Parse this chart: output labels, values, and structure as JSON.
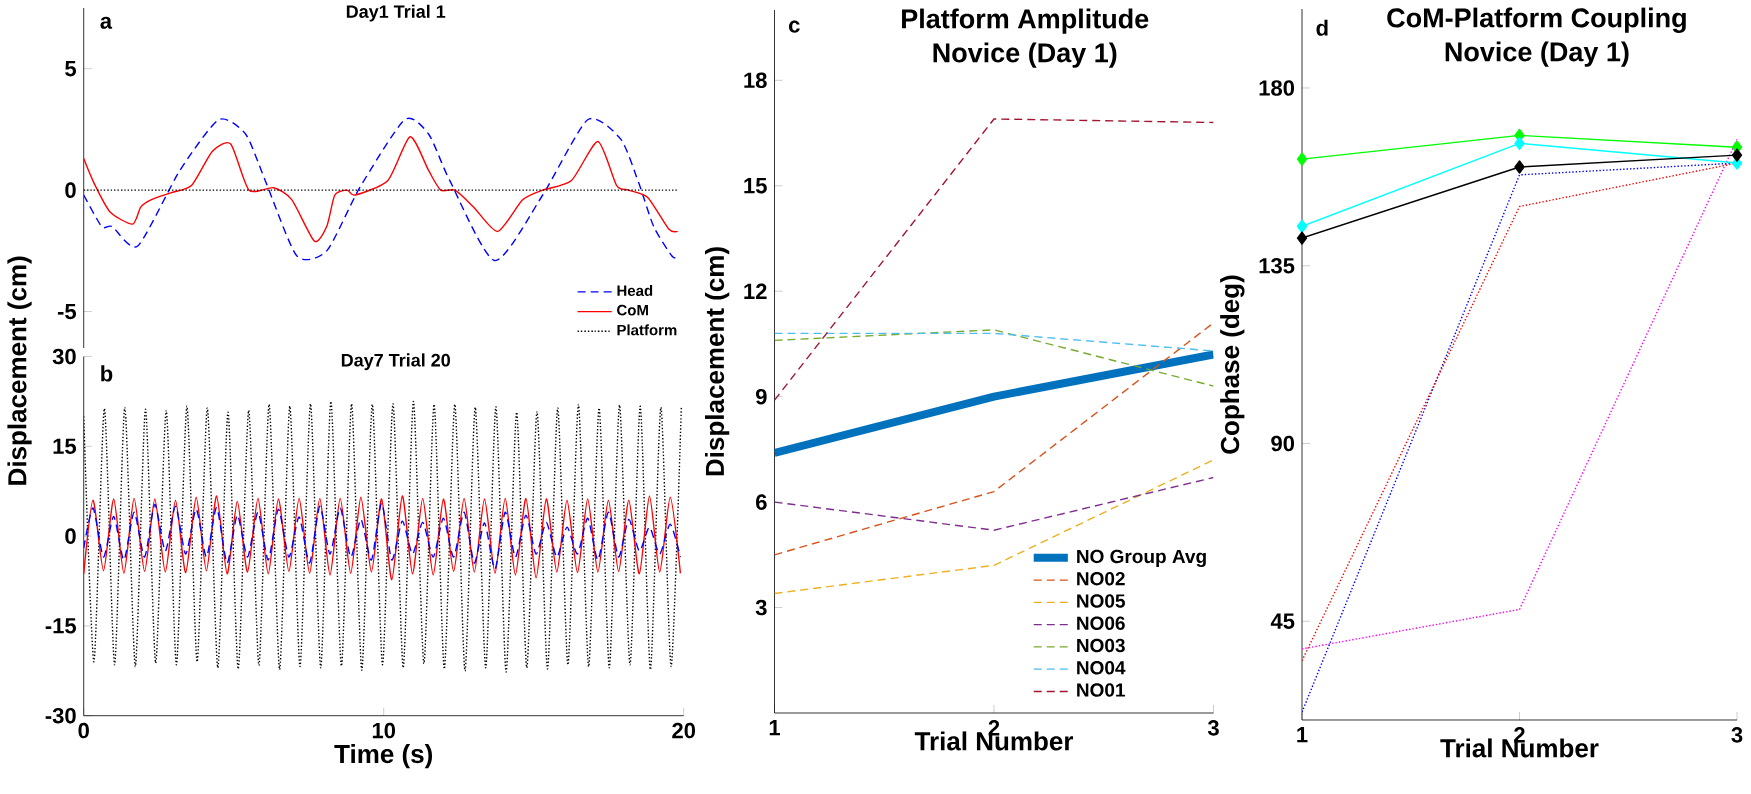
{
  "chart_data": [
    {
      "type": "line",
      "title": "Day1 Trial 1",
      "annotations": [
        "a"
      ],
      "xlim": [
        0,
        20
      ],
      "ylim": [
        -6.5,
        7.5
      ],
      "yticks": [
        -5,
        0,
        5
      ],
      "tick_labels": "y",
      "legend": "bottom right",
      "series": [
        {
          "name": "Head",
          "color": "#0000ff",
          "line_style": "dashed",
          "x": [
            0,
            0.6,
            0.95,
            1.8,
            3.2,
            4.5,
            5.4,
            6.05,
            7.1,
            8.1,
            9.2,
            10.7,
            11.5,
            12.2,
            13.7,
            15.3,
            16.8,
            17.9,
            18.5,
            19.0,
            19.6,
            19.8
          ],
          "values": [
            -0.2,
            -1.5,
            -1.5,
            -2.3,
            0.8,
            2.9,
            2.3,
            0.4,
            -2.7,
            -2.5,
            0.1,
            2.9,
            2.3,
            0.4,
            -2.9,
            -0.2,
            2.9,
            2.1,
            0.3,
            -1.5,
            -2.7,
            -2.8
          ]
        },
        {
          "name": "CoM",
          "color": "#ff0000",
          "line_style": "solid",
          "x": [
            0,
            0.34,
            0.88,
            1.63,
            1.9,
            2.24,
            2.93,
            3.6,
            4.29,
            4.9,
            5.51,
            6.33,
            6.94,
            7.69,
            8.1,
            8.37,
            8.78,
            9.05,
            10.14,
            10.88,
            11.5,
            11.9,
            12.38,
            13.0,
            13.8,
            14.63,
            15.3,
            16.26,
            17.14,
            17.76,
            18.16,
            18.8,
            19.5,
            19.8
          ],
          "values": [
            1.3,
            0.3,
            -0.9,
            -1.4,
            -0.7,
            -0.4,
            -0.1,
            0.2,
            1.6,
            1.9,
            0,
            0.1,
            -0.4,
            -2.1,
            -1.5,
            -0.2,
            0,
            -0.2,
            0.4,
            2.2,
            0.8,
            0,
            0,
            -0.7,
            -1.7,
            -0.4,
            0,
            0.4,
            2.0,
            0.2,
            0,
            -0.3,
            -1.6,
            -1.7
          ]
        },
        {
          "name": "Platform",
          "color": "#000000",
          "line_style": "dotted",
          "x": [
            0,
            19.8
          ],
          "values": [
            0,
            0
          ]
        }
      ]
    },
    {
      "type": "line",
      "title": "Day7 Trial 20",
      "xlabel": "Time (s)",
      "ylabel": "Displacement (cm)",
      "annotations": [
        "b"
      ],
      "xlim": [
        0,
        20
      ],
      "xticks": [
        0,
        10,
        20
      ],
      "ylim": [
        -30,
        30
      ],
      "yticks": [
        -30,
        -15,
        0,
        15,
        30
      ],
      "series": [
        {
          "color": "#000000",
          "line_style": "dotted",
          "x": [
            0,
            0.34,
            0.69,
            1.03,
            1.37,
            1.72,
            2.06,
            2.4,
            2.75,
            3.09,
            3.44,
            3.78,
            4.12,
            4.47,
            4.81,
            5.15,
            5.5,
            5.84,
            6.18,
            6.53,
            6.87,
            7.21,
            7.56,
            7.9,
            8.24,
            8.59,
            8.93,
            9.27,
            9.62,
            9.96,
            10.31,
            10.65,
            10.99,
            11.34,
            11.68,
            12.02,
            12.37,
            12.71,
            13.05,
            13.4,
            13.74,
            14.08,
            14.43,
            14.77,
            15.11,
            15.46,
            15.8,
            16.14,
            16.49,
            16.83,
            17.18,
            17.52,
            17.86,
            18.21,
            18.55,
            18.89,
            19.24,
            19.58,
            19.92
          ],
          "values": [
            20.0,
            -21.0,
            21.3,
            -21.5,
            21.5,
            -21.8,
            21.2,
            -21.2,
            21.0,
            -21.5,
            21.7,
            -21.0,
            21.4,
            -22.0,
            20.7,
            -22.2,
            21.0,
            -21.6,
            22.0,
            -22.3,
            21.7,
            -21.8,
            22.1,
            -22.0,
            22.5,
            -21.7,
            22.1,
            -22.4,
            22.0,
            -21.5,
            22.1,
            -22.0,
            22.5,
            -21.3,
            22.0,
            -22.2,
            22.0,
            -22.5,
            21.5,
            -22.0,
            21.6,
            -22.7,
            20.7,
            -22.0,
            20.8,
            -22.2,
            21.4,
            -21.5,
            22.0,
            -21.8,
            21.4,
            -22.0,
            21.9,
            -21.5,
            21.7,
            -22.3,
            21.5,
            -21.8,
            21.5
          ]
        },
        {
          "color": "#ff0000",
          "line_style": "solid",
          "x": [
            0,
            0.31,
            0.66,
            1.0,
            1.34,
            1.68,
            2.03,
            2.37,
            2.72,
            3.06,
            3.4,
            3.75,
            4.09,
            4.43,
            4.78,
            5.12,
            5.46,
            5.81,
            6.15,
            6.49,
            6.84,
            7.18,
            7.53,
            7.87,
            8.21,
            8.55,
            8.9,
            9.24,
            9.59,
            9.93,
            10.27,
            10.62,
            10.96,
            11.3,
            11.65,
            11.99,
            12.33,
            12.68,
            13.02,
            13.36,
            13.71,
            14.05,
            14.39,
            14.74,
            15.08,
            15.42,
            15.77,
            16.11,
            16.46,
            16.8,
            17.14,
            17.49,
            17.83,
            18.17,
            18.52,
            18.86,
            19.2,
            19.55,
            19.89
          ],
          "values": [
            -6.3,
            6.0,
            -5.8,
            6.2,
            -6.2,
            6.3,
            -5.9,
            6.2,
            -6.0,
            6.0,
            -6.1,
            6.5,
            -5.8,
            6.7,
            -6.3,
            5.8,
            -6.0,
            6.3,
            -6.3,
            6.2,
            -5.9,
            6.3,
            -6.2,
            6.3,
            -6.5,
            6.3,
            -6.2,
            6.5,
            -6.0,
            6.2,
            -7.3,
            6.7,
            -6.3,
            6.3,
            -6.5,
            6.2,
            -5.9,
            6.3,
            -6.0,
            6.2,
            -6.2,
            6.3,
            -6.5,
            6.3,
            -7.0,
            6.2,
            -6.0,
            6.0,
            -6.1,
            6.2,
            -6.0,
            6.0,
            -5.9,
            6.0,
            -6.3,
            6.7,
            -6.0,
            6.5,
            -6.2
          ]
        },
        {
          "color": "#0000ff",
          "line_style": "dashed",
          "x": [
            0,
            0.31,
            0.66,
            1.0,
            1.34,
            1.68,
            2.03,
            2.37,
            2.72,
            3.06,
            3.4,
            3.75,
            4.09,
            4.43,
            4.78,
            5.12,
            5.46,
            5.81,
            6.15,
            6.49,
            6.84,
            7.18,
            7.53,
            7.87,
            8.21,
            8.55,
            8.9,
            9.24,
            9.59,
            9.93,
            10.27,
            10.62,
            10.96,
            11.3,
            11.65,
            11.99,
            12.33,
            12.68,
            13.02,
            13.36,
            13.71,
            14.05,
            14.39,
            14.74,
            15.08,
            15.42,
            15.77,
            16.11,
            16.46,
            16.8,
            17.14,
            17.49,
            17.83,
            18.17,
            18.52,
            18.86,
            19.2,
            19.55,
            19.89
          ],
          "values": [
            -2.0,
            4.7,
            -3.5,
            3.3,
            -4.0,
            4.0,
            -3.5,
            5.3,
            -2.5,
            5.0,
            -3.0,
            4.5,
            -3.5,
            4.8,
            -4.5,
            3.5,
            -3.5,
            4.0,
            -4.0,
            4.5,
            -3.5,
            3.2,
            -4.5,
            5.0,
            -3.0,
            4.7,
            -3.5,
            2.8,
            -4.0,
            5.5,
            -4.0,
            2.5,
            -3.0,
            2.3,
            -3.5,
            3.0,
            -3.5,
            4.0,
            -4.5,
            2.2,
            -5.5,
            4.0,
            -3.5,
            3.5,
            -3.0,
            2.3,
            -3.5,
            1.5,
            -3.0,
            3.0,
            -4.0,
            4.0,
            -3.5,
            2.8,
            -2.5,
            1.5,
            -3.0,
            2.0,
            -3.5
          ]
        }
      ]
    },
    {
      "type": "line",
      "title": "Platform Amplitude",
      "subtitle": "Novice (Day 1)",
      "xlabel": "Trial Number",
      "ylabel": "Displacement (cm)",
      "annotations": [
        "c"
      ],
      "categories": [
        "1",
        "2",
        "3"
      ],
      "ylim": [
        0,
        20
      ],
      "yticks": [
        3,
        6,
        9,
        12,
        15,
        18
      ],
      "legend": "bottom right",
      "series": [
        {
          "name": "NO Group Avg",
          "color": "#0072bd",
          "line_style": "solid",
          "values": [
            7.4,
            9.0,
            10.2
          ]
        },
        {
          "name": "NO02",
          "color": "#d95319",
          "line_style": "dashed",
          "values": [
            4.5,
            6.3,
            11.1
          ]
        },
        {
          "name": "NO05",
          "color": "#edb120",
          "line_style": "dashed",
          "values": [
            3.4,
            4.2,
            7.2
          ]
        },
        {
          "name": "NO06",
          "color": "#7e2f8e",
          "line_style": "dashed",
          "values": [
            6.0,
            5.2,
            6.7
          ]
        },
        {
          "name": "NO03",
          "color": "#77ac30",
          "line_style": "dashed",
          "values": [
            10.6,
            10.9,
            9.3
          ]
        },
        {
          "name": "NO04",
          "color": "#4dbeee",
          "line_style": "dashed",
          "values": [
            10.8,
            10.8,
            10.3
          ]
        },
        {
          "name": "NO01",
          "color": "#a2142f",
          "line_style": "dashed",
          "values": [
            8.9,
            16.9,
            16.8
          ]
        }
      ]
    },
    {
      "type": "line",
      "title": "CoM-Platform Coupling",
      "subtitle": "Novice (Day 1)",
      "xlabel": "Trial Number",
      "ylabel": "Cophase (deg)",
      "annotations": [
        "d"
      ],
      "categories": [
        "1",
        "2",
        "3"
      ],
      "ylim": [
        20,
        200
      ],
      "yticks": [
        45,
        90,
        135,
        180
      ],
      "series": [
        {
          "color": "#0000ff",
          "line_style": "dotted",
          "marker": "none",
          "values": [
            22,
            158,
            161
          ]
        },
        {
          "color": "#ff0000",
          "line_style": "dotted",
          "marker": "none",
          "values": [
            35,
            150,
            161
          ]
        },
        {
          "color": "#ff00ff",
          "line_style": "dotted",
          "marker": "none",
          "values": [
            38,
            48,
            167
          ]
        },
        {
          "color": "#00ff00",
          "line_style": "solid",
          "marker": "diamond",
          "values": [
            162,
            168,
            165
          ]
        },
        {
          "color": "#00ffff",
          "line_style": "solid",
          "marker": "diamond",
          "values": [
            145,
            166,
            161
          ]
        },
        {
          "color": "#000000",
          "line_style": "solid",
          "marker": "diamond",
          "values": [
            142,
            160,
            163
          ]
        }
      ]
    }
  ]
}
